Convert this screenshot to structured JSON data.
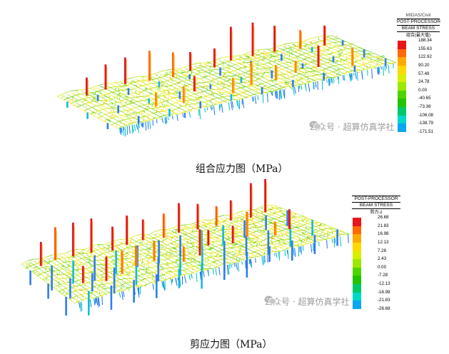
{
  "figure1": {
    "legend": {
      "program": "MIDAS/Civil",
      "title": "POST-PROCESSOR",
      "subtitle": "BEAM STRESS",
      "component": "组合(最大值)",
      "values": [
        "188.34",
        "155.63",
        "122.92",
        "90.20",
        "57.49",
        "24.78",
        "0.00",
        "-40.65",
        "-73.36",
        "-106.08",
        "-138.79",
        "-171.51"
      ],
      "colors": [
        "#e8151a",
        "#ff6a00",
        "#ffaa00",
        "#ffd800",
        "#d8ef00",
        "#9de800",
        "#4ed400",
        "#22c400",
        "#00c86a",
        "#00d8c8",
        "#0aa6f0",
        "#1559f0"
      ]
    },
    "caption": "组合应力图（MPa）"
  },
  "figure2": {
    "legend": {
      "title": "POST-PROCESSOR",
      "subtitle": "BEAM STRESS",
      "component": "剪力-z",
      "values": [
        "26.68",
        "21.83",
        "16.98",
        "12.13",
        "7.28",
        "2.43",
        "0.00",
        "-7.28",
        "-12.13",
        "-16.98",
        "-21.83",
        "-26.68"
      ],
      "colors": [
        "#e8151a",
        "#ff6a00",
        "#ffaa00",
        "#ffd800",
        "#d8ef00",
        "#9de800",
        "#4ed400",
        "#22c400",
        "#00c86a",
        "#00d8c8",
        "#0aa6f0",
        "#1559f0"
      ]
    },
    "caption": "剪应力图（MPa）"
  },
  "watermark": {
    "text": "公众号 · 超算仿真学社"
  }
}
